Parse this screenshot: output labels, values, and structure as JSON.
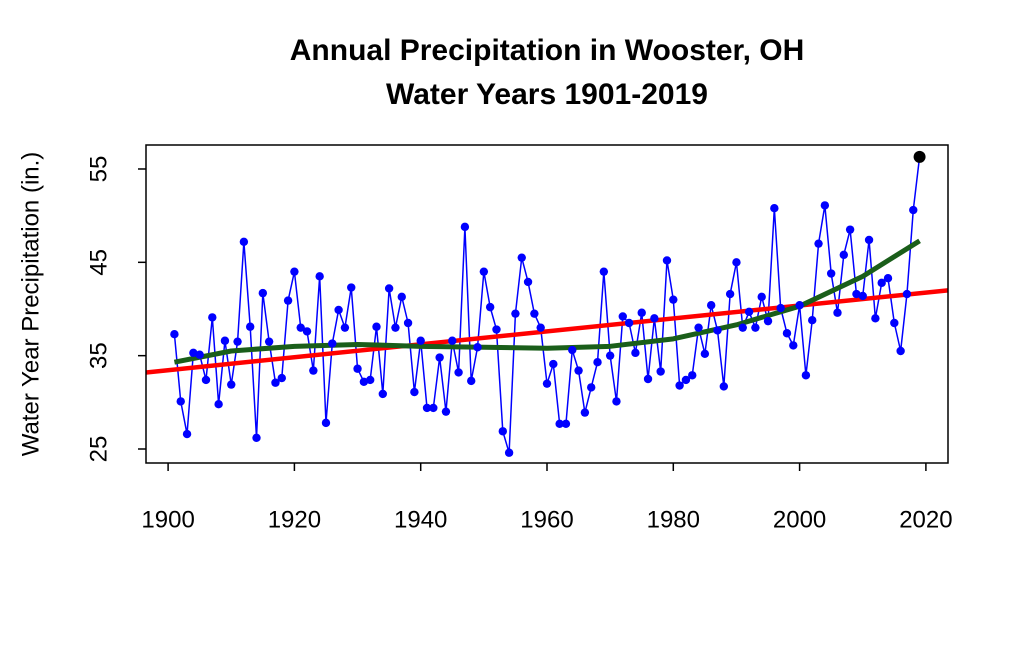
{
  "chart_data": {
    "type": "line",
    "title": [
      "Annual Precipitation in Wooster, OH",
      "Water Years 1901-2019"
    ],
    "y_label": "Water Year Precipitation (in.)",
    "x": [
      1901,
      1902,
      1903,
      1904,
      1905,
      1906,
      1907,
      1908,
      1909,
      1910,
      1911,
      1912,
      1913,
      1914,
      1915,
      1916,
      1917,
      1918,
      1919,
      1920,
      1921,
      1922,
      1923,
      1924,
      1925,
      1926,
      1927,
      1928,
      1929,
      1930,
      1931,
      1932,
      1933,
      1934,
      1935,
      1936,
      1937,
      1938,
      1939,
      1940,
      1941,
      1942,
      1943,
      1944,
      1945,
      1946,
      1947,
      1948,
      1949,
      1950,
      1951,
      1952,
      1953,
      1954,
      1955,
      1956,
      1957,
      1958,
      1959,
      1960,
      1961,
      1962,
      1963,
      1964,
      1965,
      1966,
      1967,
      1968,
      1969,
      1970,
      1971,
      1972,
      1973,
      1974,
      1975,
      1976,
      1977,
      1978,
      1979,
      1980,
      1981,
      1982,
      1983,
      1984,
      1985,
      1986,
      1987,
      1988,
      1989,
      1990,
      1991,
      1992,
      1993,
      1994,
      1995,
      1996,
      1997,
      1998,
      1999,
      2000,
      2001,
      2002,
      2003,
      2004,
      2005,
      2006,
      2007,
      2008,
      2009,
      2010,
      2011,
      2012,
      2013,
      2014,
      2015,
      2016,
      2017,
      2018,
      2019
    ],
    "series": [
      {
        "color": "#0000ff",
        "markers": true,
        "values": [
          37.3,
          30.1,
          26.6,
          35.3,
          35.1,
          32.4,
          39.1,
          29.8,
          36.6,
          31.9,
          36.5,
          47.2,
          38.1,
          26.2,
          41.7,
          36.5,
          32.1,
          32.6,
          40.9,
          44.0,
          38.0,
          37.6,
          33.4,
          43.5,
          27.8,
          36.3,
          39.9,
          38.0,
          42.3,
          33.6,
          32.2,
          32.4,
          38.1,
          30.9,
          42.2,
          38.0,
          41.3,
          38.5,
          31.1,
          36.6,
          29.4,
          29.4,
          34.8,
          29.0,
          36.6,
          33.2,
          48.8,
          32.3,
          35.9,
          44.0,
          40.2,
          37.8,
          26.9,
          24.6,
          39.5,
          45.5,
          42.9,
          39.5,
          38.0,
          32.0,
          34.1,
          27.7,
          27.7,
          35.6,
          33.4,
          28.9,
          31.6,
          34.3,
          44.0,
          35.0,
          30.1,
          39.2,
          38.5,
          35.3,
          39.6,
          32.5,
          39.0,
          33.3,
          45.2,
          41.0,
          31.8,
          32.4,
          32.9,
          38.0,
          35.2,
          40.4,
          37.7,
          31.7,
          41.6,
          45.0,
          38.0,
          39.7,
          38.0,
          41.3,
          38.7,
          50.8,
          40.1,
          37.4,
          36.1,
          40.4,
          32.9,
          38.8,
          47.0,
          51.1,
          43.8,
          39.6,
          45.8,
          48.5,
          41.6,
          41.4,
          47.4,
          39.0,
          42.8,
          43.3,
          38.5,
          35.5,
          41.6,
          50.6,
          56.3
        ],
        "highlight": {
          "index": 118,
          "color": "#000000"
        }
      },
      {
        "color": "#ff0000",
        "x": [
          1896.5,
          2023.5
        ],
        "values": [
          33.2,
          42.0
        ]
      },
      {
        "color": "#1a5e1a",
        "x": [
          1901,
          1910,
          1920,
          1930,
          1940,
          1950,
          1960,
          1970,
          1980,
          1990,
          2000,
          2010,
          2019
        ],
        "values": [
          34.3,
          35.5,
          36.0,
          36.2,
          36.0,
          35.9,
          35.8,
          36.0,
          36.8,
          38.3,
          40.3,
          43.5,
          47.3
        ]
      }
    ],
    "xlim": [
      1896.5,
      2023.5
    ],
    "ylim": [
      23.5,
      57.57
    ],
    "xticks": [
      1900,
      1920,
      1940,
      1960,
      1980,
      2000,
      2020
    ],
    "yticks": [
      25,
      35,
      45,
      55
    ]
  }
}
